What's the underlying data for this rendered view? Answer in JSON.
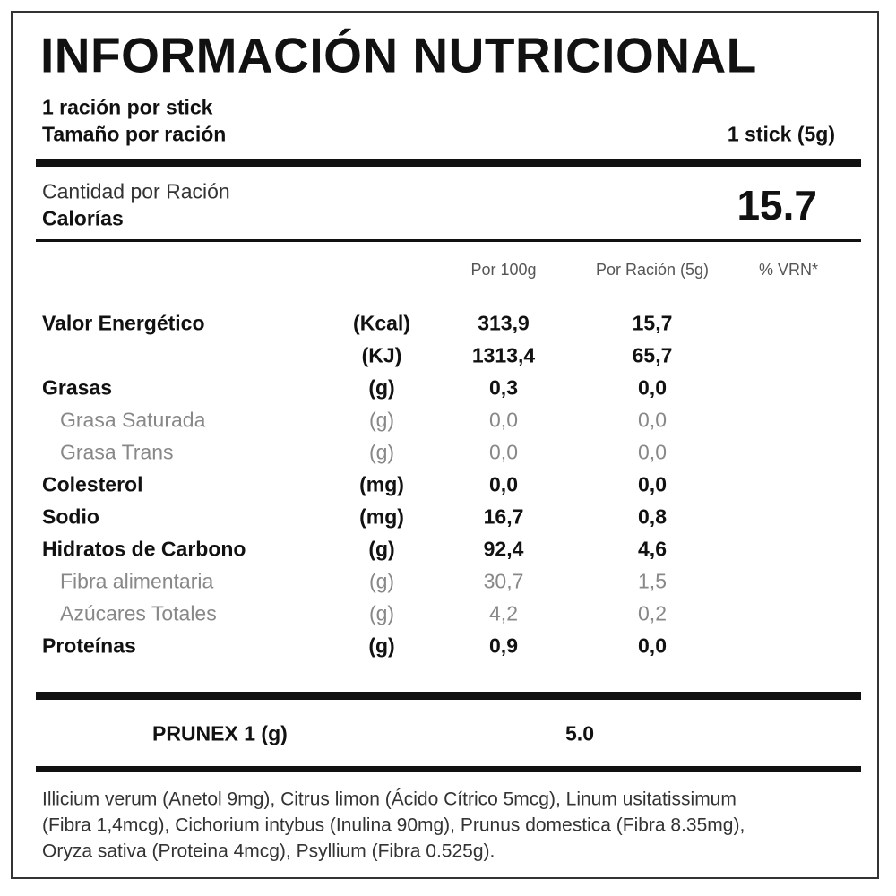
{
  "title": "INFORMACIÓN NUTRICIONAL",
  "serving": {
    "line1": "1 ración por stick",
    "size_label": "Tamaño por ración",
    "size_value": "1 stick (5g)"
  },
  "calories": {
    "amount_label": "Cantidad por Ración",
    "label": "Calorías",
    "value": "15.7"
  },
  "table": {
    "headers": [
      "Por 100g",
      "Por Ración (5g)",
      "% VRN*"
    ],
    "rows": [
      {
        "name": "Valor Energético",
        "unit": "(Kcal)",
        "per_100g": "313,9",
        "per_serving": "15,7",
        "style": "main"
      },
      {
        "name": null,
        "unit": "(KJ)",
        "per_100g": "1313,4",
        "per_serving": "65,7",
        "style": "main"
      },
      {
        "name": "Grasas",
        "unit": "(g)",
        "per_100g": "0,3",
        "per_serving": "0,0",
        "style": "main"
      },
      {
        "name": "Grasa Saturada",
        "unit": "(g)",
        "per_100g": "0,0",
        "per_serving": "0,0",
        "style": "sub"
      },
      {
        "name": "Grasa Trans",
        "unit": "(g)",
        "per_100g": "0,0",
        "per_serving": "0,0",
        "style": "sub"
      },
      {
        "name": "Colesterol",
        "unit": "(mg)",
        "per_100g": "0,0",
        "per_serving": "0,0",
        "style": "main"
      },
      {
        "name": "Sodio",
        "unit": "(mg)",
        "per_100g": "16,7",
        "per_serving": "0,8",
        "style": "main"
      },
      {
        "name": "Hidratos de Carbono",
        "unit": "(g)",
        "per_100g": "92,4",
        "per_serving": "4,6",
        "style": "main"
      },
      {
        "name": "Fibra alimentaria",
        "unit": "(g)",
        "per_100g": "30,7",
        "per_serving": "1,5",
        "style": "sub"
      },
      {
        "name": "Azúcares Totales",
        "unit": "(g)",
        "per_100g": "4,2",
        "per_serving": "0,2",
        "style": "sub"
      },
      {
        "name": "Proteínas",
        "unit": "(g)",
        "per_100g": "0,9",
        "per_serving": "0,0",
        "style": "main"
      }
    ]
  },
  "extra": {
    "name": "PRUNEX 1 (g)",
    "value": "5.0"
  },
  "ingredients": [
    "Illicium verum (Anetol 9mg), Citrus limon (Ácido Cítrico 5mcg), Linum usitatissimum",
    "(Fibra 1,4mcg), Cichorium intybus (Inulina 90mg), Prunus domestica (Fibra 8.35mg),",
    "Oryza sativa (Proteina 4mcg), Psyllium (Fibra 0.525g)."
  ]
}
